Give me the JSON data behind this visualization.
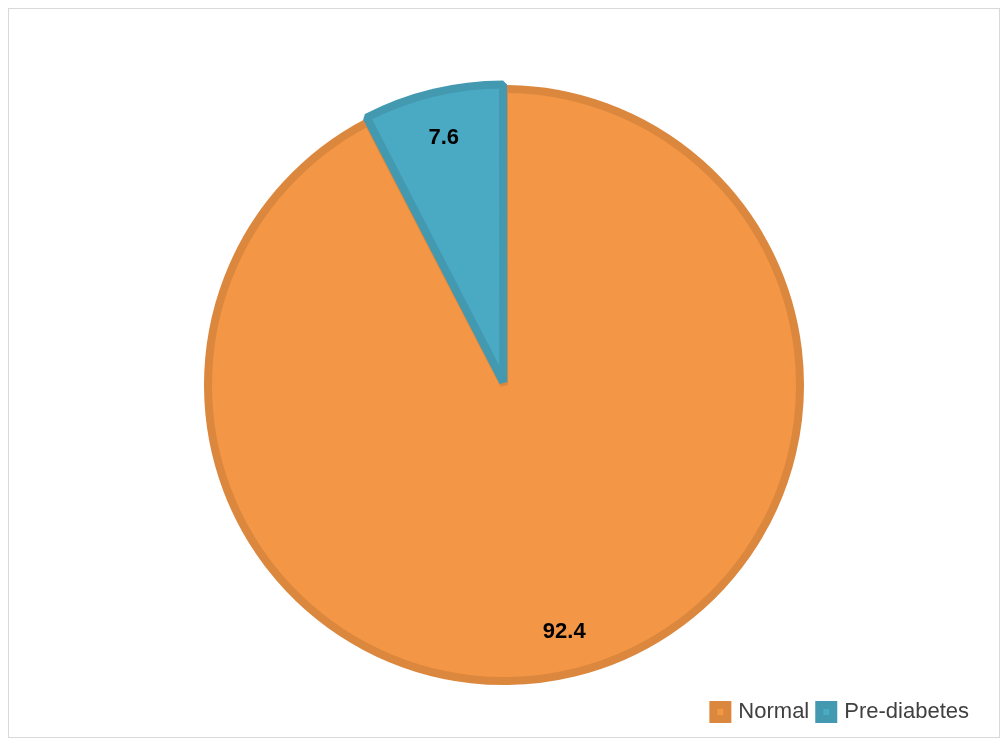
{
  "chart_data": {
    "type": "pie",
    "categories": [
      "Normal",
      "Pre-diabetes"
    ],
    "values": [
      92.4,
      7.6
    ],
    "colors": [
      "#f39645",
      "#4aaac4"
    ],
    "data_labels": true,
    "legend": "bottom right"
  }
}
